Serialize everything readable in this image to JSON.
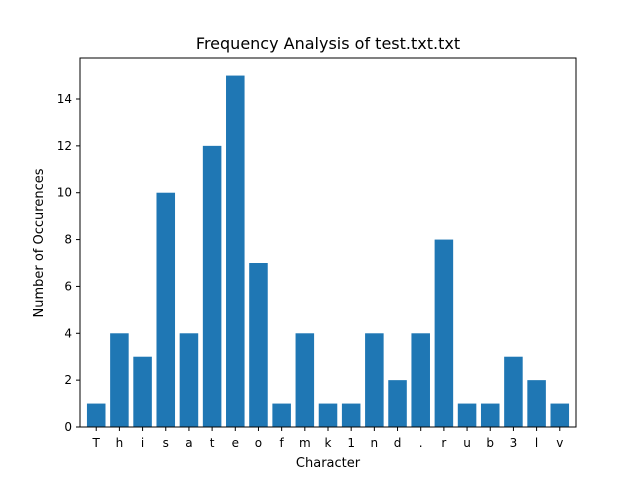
{
  "chart_data": {
    "type": "bar",
    "title": "Frequency Analysis of test.txt.txt",
    "xlabel": "Character",
    "ylabel": "Number of Occurences",
    "categories": [
      "T",
      "h",
      "i",
      "s",
      "a",
      "t",
      "e",
      "o",
      "f",
      "m",
      "k",
      "1",
      "n",
      "d",
      ".",
      "r",
      "u",
      "b",
      "3",
      "l",
      "v"
    ],
    "values": [
      1,
      4,
      3,
      10,
      4,
      12,
      15,
      7,
      1,
      4,
      1,
      1,
      4,
      2,
      4,
      8,
      1,
      1,
      3,
      2,
      1
    ],
    "ylim": [
      0,
      15.75
    ],
    "yticks": [
      0,
      2,
      4,
      6,
      8,
      10,
      12,
      14
    ],
    "grid": false,
    "bar_color": "#1f77b4"
  }
}
